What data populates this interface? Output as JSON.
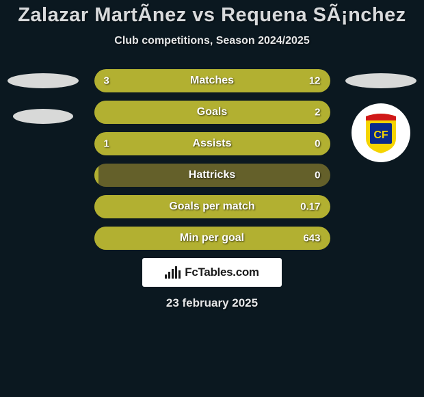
{
  "background_color": "#0b1820",
  "title": {
    "text": "Zalazar MartÃ­nez vs Requena SÃ¡nchez",
    "color": "#d8dadc",
    "fontsize": 29
  },
  "subtitle": {
    "text": "Club competitions, Season 2024/2025",
    "color": "#e6e7e8",
    "fontsize": 16
  },
  "track_color": "#64602a",
  "left_fill_color": "#b2b031",
  "right_fill_color": "#b2b031",
  "label_color": "#ffffff",
  "label_fontsize": 16,
  "value_color": "#ffffff",
  "value_fontsize": 15,
  "left_player_fill_pct_default": 2,
  "stats": [
    {
      "label": "Matches",
      "left_display": "3",
      "right_display": "12",
      "left_pct": 20,
      "right_pct": 80
    },
    {
      "label": "Goals",
      "left_display": "",
      "right_display": "2",
      "left_pct": 2,
      "right_pct": 98
    },
    {
      "label": "Assists",
      "left_display": "1",
      "right_display": "0",
      "left_pct": 100,
      "right_pct": 0
    },
    {
      "label": "Hattricks",
      "left_display": "",
      "right_display": "0",
      "left_pct": 2,
      "right_pct": 0
    },
    {
      "label": "Goals per match",
      "left_display": "",
      "right_display": "0.17",
      "left_pct": 2,
      "right_pct": 98
    },
    {
      "label": "Min per goal",
      "left_display": "",
      "right_display": "643",
      "left_pct": 2,
      "right_pct": 98
    }
  ],
  "left_badges": {
    "ellipse_color": "#d8d9d8"
  },
  "right_badges": {
    "ellipse_color": "#d8d9d8",
    "crest_ring_color": "#ffffff",
    "crest_blue": "#0a2a8a",
    "crest_yellow": "#f5d400",
    "crest_red": "#d01818"
  },
  "site_badge": {
    "bg_color": "#ffffff",
    "text_color": "#1a1a1a",
    "text": "FcTables.com",
    "fontsize": 17,
    "icon_bar_color": "#1a1a1a",
    "icon_heights": [
      6,
      10,
      14,
      18,
      12
    ]
  },
  "date": {
    "text": "23 february 2025",
    "color": "#e6e7e8",
    "fontsize": 17
  }
}
